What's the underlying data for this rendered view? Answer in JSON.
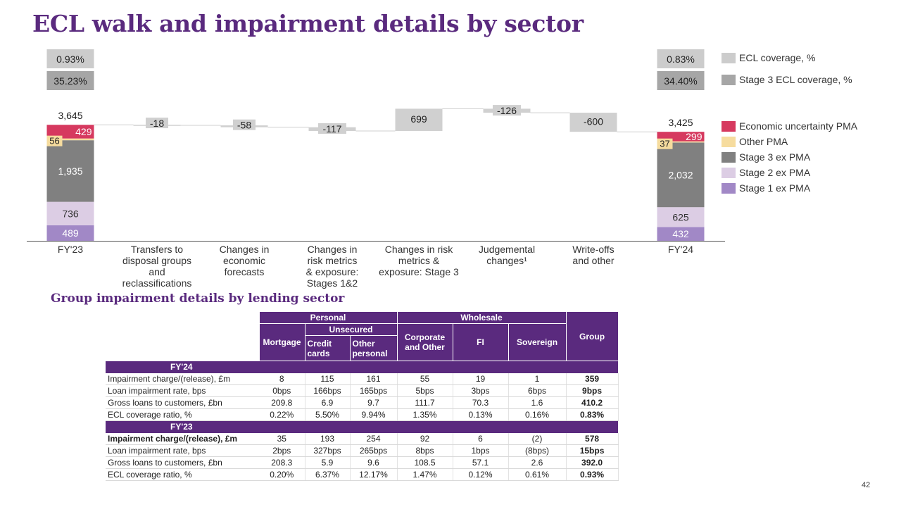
{
  "page": {
    "title": "ECL walk and impairment details by sector",
    "page_number": "42"
  },
  "chart_data": {
    "type": "waterfall",
    "title": "ECL walk and impairment details by sector",
    "unit": "£m",
    "categories": [
      "FY'23",
      "Transfers to disposal groups and reclassifications",
      "Changes in economic forecasts",
      "Changes in risk metrics & exposure: Stages 1&2",
      "Changes in risk metrics & exposure: Stage 3",
      "Judgemental changes¹",
      "Write-offs and other",
      "FY'24"
    ],
    "category_lines": [
      [
        "FY'23"
      ],
      [
        "Transfers to",
        "disposal groups",
        "and",
        "reclassifications"
      ],
      [
        "Changes in",
        "economic",
        "forecasts"
      ],
      [
        "Changes in",
        "risk metrics",
        "& exposure:",
        "Stages 1&2"
      ],
      [
        "Changes in risk",
        "metrics &",
        "exposure: Stage 3"
      ],
      [
        "Judgemental",
        "changes¹"
      ],
      [
        "Write-offs",
        "and other"
      ],
      [
        "FY'24"
      ]
    ],
    "fy23": {
      "total": "3,645",
      "ecl_coverage": "0.93%",
      "stage3_ecl_coverage": "35.23%",
      "stack": {
        "stage1": 489,
        "stage2": 736,
        "stage3": 1935,
        "other_pma": 56,
        "economic_pma": 429
      },
      "labels": {
        "stage1": "489",
        "stage2": "736",
        "stage3": "1,935",
        "other_pma": "56",
        "economic_pma": "429"
      }
    },
    "walk": [
      {
        "value": -18,
        "label": "-18"
      },
      {
        "value": -58,
        "label": "-58"
      },
      {
        "value": -117,
        "label": "-117"
      },
      {
        "value": 699,
        "label": "699"
      },
      {
        "value": -126,
        "label": "-126"
      },
      {
        "value": -600,
        "label": "-600"
      }
    ],
    "fy24": {
      "total": "3,425",
      "ecl_coverage": "0.83%",
      "stage3_ecl_coverage": "34.40%",
      "stack": {
        "stage1": 432,
        "stage2": 625,
        "stage3": 2032,
        "other_pma": 37,
        "economic_pma": 299
      },
      "labels": {
        "stage1": "432",
        "stage2": "625",
        "stage3": "2,032",
        "other_pma": "37",
        "economic_pma": "299"
      }
    },
    "legend": [
      {
        "key": "ecl_cov",
        "label": "ECL coverage, %",
        "color": "#cccccc"
      },
      {
        "key": "s3_cov",
        "label": "Stage 3 ECL coverage, %",
        "color": "#a6a6a6"
      },
      {
        "key": "economic_pma",
        "label": "Economic uncertainty PMA",
        "color": "#d6395f"
      },
      {
        "key": "other_pma",
        "label": "Other PMA",
        "color": "#f6dc9e"
      },
      {
        "key": "stage3",
        "label": "Stage 3 ex PMA",
        "color": "#808080"
      },
      {
        "key": "stage2",
        "label": "Stage 2 ex PMA",
        "color": "#dccde4"
      },
      {
        "key": "stage1",
        "label": "Stage 1 ex PMA",
        "color": "#a188c6"
      }
    ],
    "colors": {
      "walk_bar": "#d0d0d0",
      "connector": "#cfcfcf",
      "axis": "#555555"
    }
  },
  "table": {
    "title": "Group impairment details by lending sector",
    "headers": {
      "personal": "Personal",
      "wholesale": "Wholesale",
      "unsecured": "Unsecured",
      "mortgage": "Mortgage",
      "credit_cards": "Credit cards",
      "other_personal": "Other personal",
      "corporate": "Corporate and Other",
      "fi": "FI",
      "sovereign": "Sovereign",
      "group": "Group"
    },
    "sections": [
      {
        "label": "FY'24",
        "rows": [
          {
            "label": "Impairment charge/(release), £m",
            "values": [
              "8",
              "115",
              "161",
              "55",
              "19",
              "1",
              "359"
            ]
          },
          {
            "label": "Loan impairment rate, bps",
            "values": [
              "0bps",
              "166bps",
              "165bps",
              "5bps",
              "3bps",
              "6bps",
              "9bps"
            ]
          },
          {
            "label": "Gross loans to customers, £bn",
            "values": [
              "209.8",
              "6.9",
              "9.7",
              "111.7",
              "70.3",
              "1.6",
              "410.2"
            ]
          },
          {
            "label": "ECL coverage ratio, %",
            "values": [
              "0.22%",
              "5.50%",
              "9.94%",
              "1.35%",
              "0.13%",
              "0.16%",
              "0.83%"
            ]
          }
        ]
      },
      {
        "label": "FY'23",
        "rows": [
          {
            "label": "Impairment charge/(release), £m",
            "values": [
              "35",
              "193",
              "254",
              "92",
              "6",
              "(2)",
              "578"
            ]
          },
          {
            "label": "Loan impairment rate, bps",
            "values": [
              "2bps",
              "327bps",
              "265bps",
              "8bps",
              "1bps",
              "(8bps)",
              "15bps"
            ]
          },
          {
            "label": "Gross loans to customers, £bn",
            "values": [
              "208.3",
              "5.9",
              "9.6",
              "108.5",
              "57.1",
              "2.6",
              "392.0"
            ]
          },
          {
            "label": "ECL coverage ratio, %",
            "values": [
              "0.20%",
              "6.37%",
              "12.17%",
              "1.47%",
              "0.12%",
              "0.61%",
              "0.93%"
            ]
          }
        ]
      }
    ]
  }
}
